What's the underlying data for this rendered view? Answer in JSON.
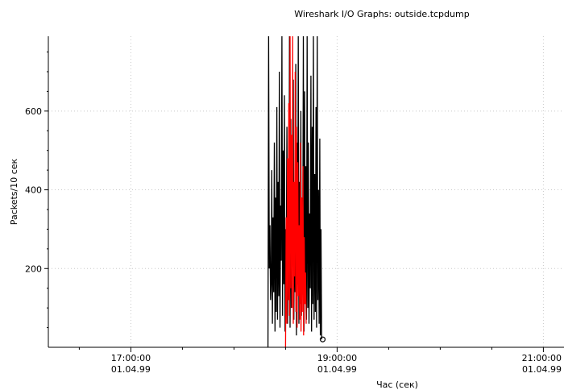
{
  "chart_data": {
    "type": "line",
    "title": "Wireshark I/O Graphs: outside.tcpdump",
    "xlabel": "Час (сек)",
    "ylabel": "Packets/10 сек",
    "xlim_hours": [
      16.2,
      21.2
    ],
    "ylim": [
      0,
      790
    ],
    "grid": true,
    "x_ticks": [
      {
        "time": "17:00:00",
        "date": "01.04.99",
        "hour": 17
      },
      {
        "time": "19:00:00",
        "date": "01.04.99",
        "hour": 19
      },
      {
        "time": "21:00:00",
        "date": "01.04.99",
        "hour": 21
      }
    ],
    "y_ticks": [
      200,
      400,
      600
    ],
    "series": [
      {
        "color": "#000000",
        "x_start_hour": 18.33,
        "x_end_hour": 18.85,
        "values": [
          0,
          790,
          200,
          310,
          120,
          160,
          450,
          60,
          330,
          140,
          520,
          40,
          380,
          90,
          610,
          70,
          420,
          130,
          700,
          50,
          360,
          220,
          790,
          80,
          500,
          160,
          640,
          40,
          300,
          190,
          560,
          60,
          450,
          120,
          790,
          50,
          580,
          100,
          430,
          210,
          680,
          70,
          350,
          140,
          720,
          30,
          520,
          160,
          790,
          60,
          420,
          110,
          600,
          80,
          380,
          190,
          790,
          40,
          650,
          130,
          460,
          70,
          790,
          100,
          520,
          60,
          340,
          150,
          690,
          40,
          560,
          110,
          790,
          70,
          440,
          90,
          610,
          50,
          790,
          120,
          400,
          60,
          530,
          30,
          300,
          20
        ]
      },
      {
        "color": "#ff0000",
        "x_start_hour": 18.5,
        "x_end_hour": 18.7,
        "values": [
          0,
          330,
          60,
          480,
          120,
          620,
          80,
          790,
          150,
          540,
          100,
          790,
          60,
          420,
          180,
          700,
          90,
          560,
          50,
          470,
          130,
          310,
          70,
          520,
          40,
          380,
          90,
          460,
          30,
          280,
          110,
          190,
          60
        ]
      }
    ],
    "end_marker_hour": 18.86,
    "end_marker_value": 20
  }
}
